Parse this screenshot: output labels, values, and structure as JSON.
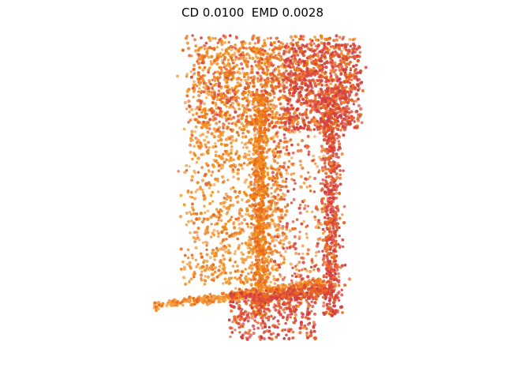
{
  "title": "CD 0.0100  EMD 0.0028",
  "point_cloud": {
    "colors": {
      "orange": "#f28a16",
      "dark_orange": "#e8691f",
      "red": "#d9443f",
      "crimson": "#cf3a3f",
      "light_orange": "#f5a04a"
    }
  }
}
